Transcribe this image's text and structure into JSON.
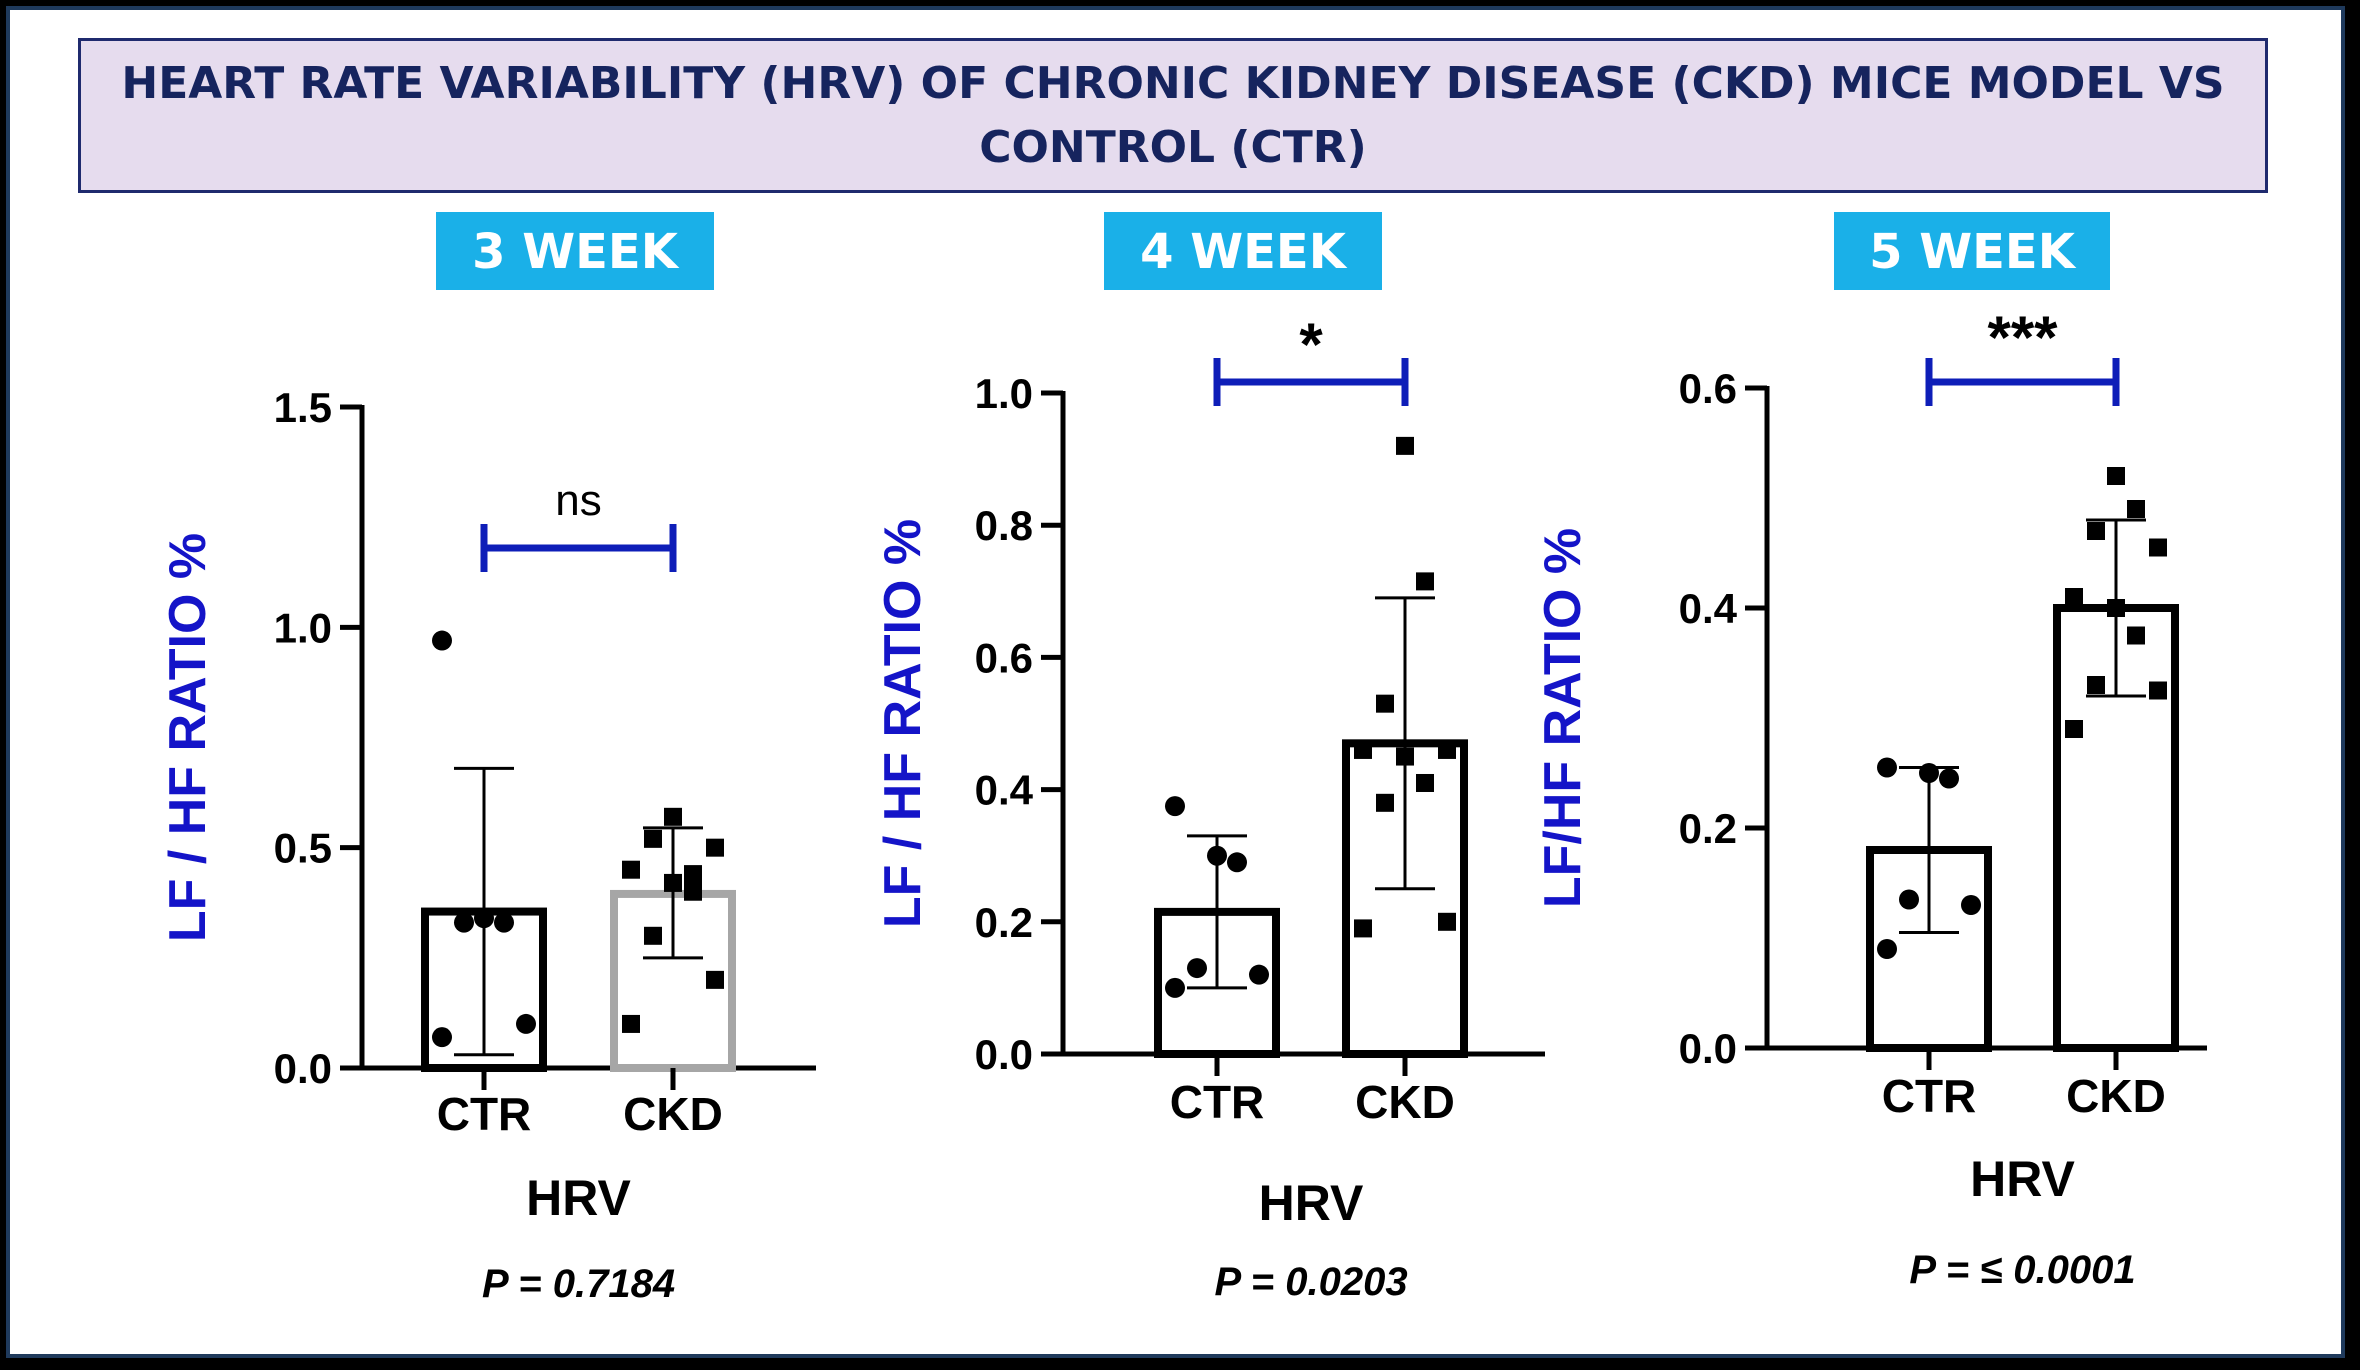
{
  "title": "HEART RATE VARIABILITY (HRV) OF CHRONIC KIDNEY DISEASE (CKD) MICE MODEL VS CONTROL (CTR)",
  "colors": {
    "bracket": "#0e1eb8",
    "ylabel": "#1414c8",
    "week_badge_bg": "#1ab0e8",
    "week_badge_text": "#ffffff",
    "ckd_bar_3week": "#a6a6a6",
    "bar_default": "#000000"
  },
  "chart_data": [
    {
      "type": "bar",
      "panel_title": "3 WEEK",
      "categories": [
        "CTR",
        "CKD"
      ],
      "values": [
        0.355,
        0.395
      ],
      "error_upper": [
        0.68,
        0.545
      ],
      "error_lower": [
        0.03,
        0.25
      ],
      "points": [
        [
          0.07,
          0.1,
          0.33,
          0.33,
          0.34,
          0.97
        ],
        [
          0.1,
          0.2,
          0.3,
          0.4,
          0.42,
          0.45,
          0.5,
          0.52,
          0.44,
          0.57
        ]
      ],
      "marker": [
        "circle",
        "square"
      ],
      "ylim": [
        0,
        1.5
      ],
      "yticks": [
        "0.0",
        "0.5",
        "1.0",
        "1.5"
      ],
      "ylabel": "LF / HF RATIO %",
      "xlabel": "HRV",
      "significance": "ns",
      "p_value": "P = 0.7184"
    },
    {
      "type": "bar",
      "panel_title": "4 WEEK",
      "categories": [
        "CTR",
        "CKD"
      ],
      "values": [
        0.215,
        0.47
      ],
      "error_upper": [
        0.33,
        0.69
      ],
      "error_lower": [
        0.1,
        0.25
      ],
      "points": [
        [
          0.1,
          0.12,
          0.13,
          0.29,
          0.3,
          0.375
        ],
        [
          0.19,
          0.2,
          0.38,
          0.41,
          0.45,
          0.46,
          0.46,
          0.53,
          0.715,
          0.92
        ]
      ],
      "marker": [
        "circle",
        "square"
      ],
      "ylim": [
        0,
        1.0
      ],
      "yticks": [
        "0.0",
        "0.2",
        "0.4",
        "0.6",
        "0.8",
        "1.0"
      ],
      "ylabel": "LF / HF RATIO %",
      "xlabel": "HRV",
      "significance": "*",
      "p_value": "P = 0.0203"
    },
    {
      "type": "bar",
      "panel_title": "5 WEEK",
      "categories": [
        "CTR",
        "CKD"
      ],
      "values": [
        0.18,
        0.4
      ],
      "error_upper": [
        0.255,
        0.48
      ],
      "error_lower": [
        0.105,
        0.32
      ],
      "points": [
        [
          0.09,
          0.13,
          0.135,
          0.245,
          0.25,
          0.255
        ],
        [
          0.29,
          0.325,
          0.33,
          0.375,
          0.4,
          0.41,
          0.455,
          0.47,
          0.49,
          0.52
        ]
      ],
      "marker": [
        "circle",
        "square"
      ],
      "ylim": [
        0,
        0.6
      ],
      "yticks": [
        "0.0",
        "0.2",
        "0.4",
        "0.6"
      ],
      "ylabel": "LF/HF RATIO %",
      "xlabel": "HRV",
      "significance": "***",
      "p_value": "P = ≤ 0.0001"
    }
  ]
}
